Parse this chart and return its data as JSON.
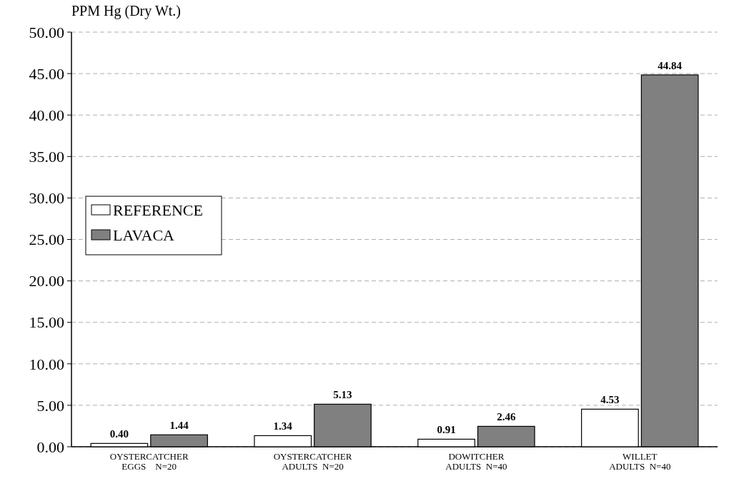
{
  "chart_data": {
    "type": "bar",
    "ylabel": "PPM Hg (Dry Wt.)",
    "categories": [
      "OYSTERCATCHER\nEGGS    N=20",
      "OYSTERCATCHER\nADULTS  N=20",
      "DOWITCHER\nADULTS  N=40",
      "WILLET\nADULTS  N=40"
    ],
    "series": [
      {
        "name": "REFERENCE",
        "color": "#ffffff",
        "values": [
          0.4,
          1.34,
          0.91,
          4.53
        ],
        "value_labels": [
          "0.40",
          "1.34",
          "0.91",
          "4.53"
        ]
      },
      {
        "name": "LAVACA",
        "color": "#808080",
        "values": [
          1.44,
          5.13,
          2.46,
          44.84
        ],
        "value_labels": [
          "1.44",
          "5.13",
          "2.46",
          "44.84"
        ]
      }
    ],
    "ylim": [
      0,
      50
    ],
    "yticks": [
      {
        "value": 0,
        "label": "0.00"
      },
      {
        "value": 5,
        "label": "5.00"
      },
      {
        "value": 10,
        "label": "10.00"
      },
      {
        "value": 15,
        "label": "15.00"
      },
      {
        "value": 20,
        "label": "20.00"
      },
      {
        "value": 25,
        "label": "25.00"
      },
      {
        "value": 30,
        "label": "30.00"
      },
      {
        "value": 35,
        "label": "35.00"
      },
      {
        "value": 40,
        "label": "40.00"
      },
      {
        "value": 45,
        "label": "45.00"
      },
      {
        "value": 50,
        "label": "50.00"
      }
    ],
    "grid": "y",
    "legend": "left"
  }
}
